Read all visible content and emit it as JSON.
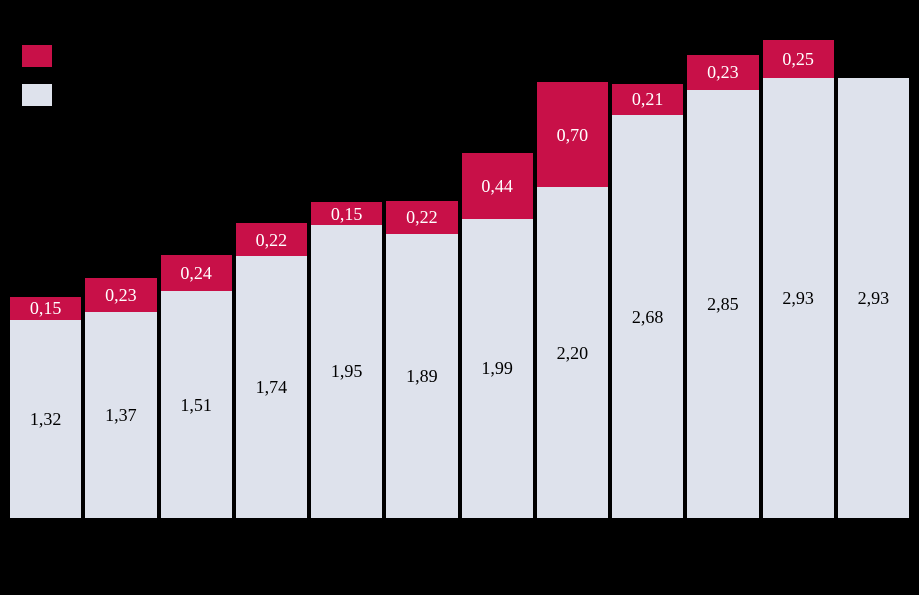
{
  "colors": {
    "background": "#000000",
    "highlight_series": "#C81048",
    "base_series": "#DEE2EC",
    "label_on_highlight": "#FFFFFF",
    "label_on_base": "#000000"
  },
  "legend": {
    "position": "top-left",
    "items": [
      {
        "name": "highlight",
        "color": "#C81048",
        "label": ""
      },
      {
        "name": "base",
        "color": "#DEE2EC",
        "label": ""
      }
    ]
  },
  "chart_data": {
    "type": "bar",
    "stacked": true,
    "grid": false,
    "axes_visible": false,
    "legend_position": "top-left",
    "ylim": [
      0,
      3.18
    ],
    "series": [
      {
        "name": "highlight",
        "color": "#C81048",
        "label_color": "#FFFFFF",
        "values": [
          0.15,
          0.23,
          0.24,
          0.22,
          0.15,
          0.22,
          0.44,
          0.7,
          0.21,
          0.23,
          0.25,
          0
        ],
        "labels": [
          "0,15",
          "0,23",
          "0,24",
          "0,22",
          "0,15",
          "0,22",
          "0,44",
          "0,70",
          "0,21",
          "0,23",
          "0,25",
          ""
        ]
      },
      {
        "name": "base",
        "color": "#DEE2EC",
        "label_color": "#000000",
        "values": [
          1.32,
          1.37,
          1.51,
          1.74,
          1.95,
          1.89,
          1.99,
          2.2,
          2.68,
          2.85,
          2.93,
          2.93
        ],
        "labels": [
          "1,32",
          "1,37",
          "1,51",
          "1,74",
          "1,95",
          "1,89",
          "1,99",
          "2,20",
          "2,68",
          "2,85",
          "2,93",
          "2,93"
        ]
      }
    ]
  }
}
